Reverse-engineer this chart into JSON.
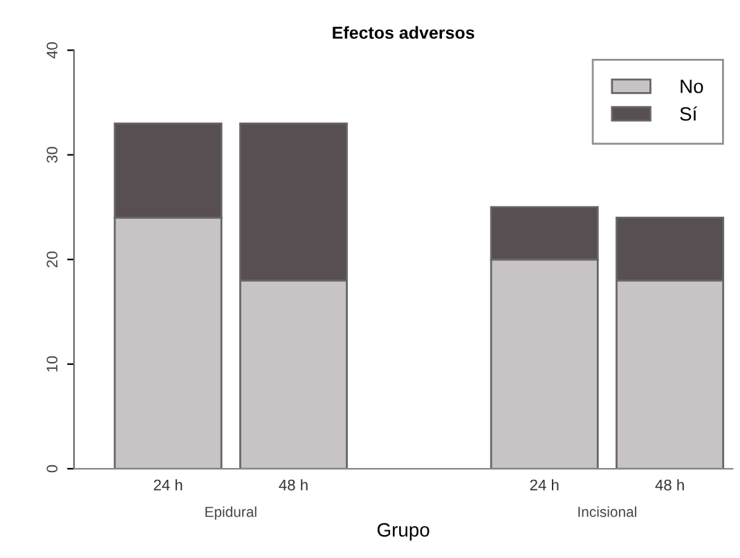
{
  "chart_data": {
    "type": "bar",
    "title": "Efectos adversos",
    "xlabel": "Grupo",
    "categories": [
      "24 h",
      "48 h",
      "24 h",
      "48 h"
    ],
    "annotations": [
      "Epidural",
      "Incisional"
    ],
    "stacked": true,
    "series": [
      {
        "name": "No",
        "color": "#c8c4c5",
        "values": [
          24,
          18,
          20,
          18
        ]
      },
      {
        "name": "Sí",
        "color": "#584f52",
        "values": [
          9,
          15,
          5,
          6
        ]
      }
    ],
    "ylim": [
      0,
      40
    ],
    "yticks": [
      0,
      10,
      20,
      30,
      40
    ],
    "grid": false,
    "legend": "top right"
  }
}
